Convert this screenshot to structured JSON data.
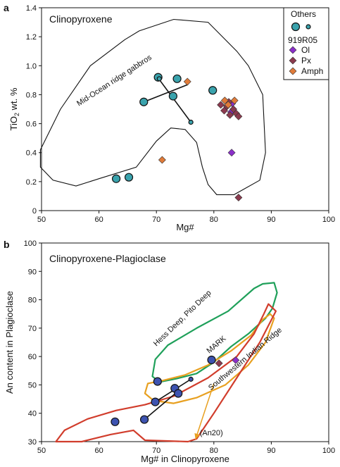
{
  "chart_data": [
    {
      "panel": "a",
      "type": "scatter",
      "title": "Clinopyroxene",
      "xlabel": "Mg#",
      "ylabel_main": "TiO",
      "ylabel_sub": "2",
      "ylabel_rest": " wt. %",
      "xlim": [
        50,
        100
      ],
      "ylim": [
        0,
        1.4
      ],
      "xticks": [
        "50",
        "60",
        "70",
        "80",
        "90",
        "100"
      ],
      "yticks": [
        "0",
        "0.2",
        "0.4",
        "0.6",
        "0.8",
        "1.0",
        "1.2",
        "1.4"
      ],
      "legend": {
        "placement": "top-right",
        "title": "Others",
        "sample": "919R05",
        "entries": [
          {
            "label": "Ol",
            "color": "#8b2fc9",
            "marker": "diamond"
          },
          {
            "label": "Px",
            "color": "#8b3a4e",
            "marker": "diamond"
          },
          {
            "label": "Amph",
            "color": "#e07b39",
            "marker": "diamond"
          }
        ]
      },
      "field": {
        "label": "Mid-Ocean ridge gabbros",
        "polygon": [
          [
            64.5,
            1.18
          ],
          [
            58.5,
            1.0
          ],
          [
            53.3,
            0.7
          ],
          [
            49.8,
            0.42
          ],
          [
            49.8,
            0.3
          ],
          [
            52.0,
            0.21
          ],
          [
            56.0,
            0.17
          ],
          [
            60.0,
            0.22
          ],
          [
            66.5,
            0.3
          ],
          [
            70.0,
            0.48
          ],
          [
            72.5,
            0.57
          ],
          [
            75.0,
            0.56
          ],
          [
            77.0,
            0.47
          ],
          [
            78.0,
            0.3
          ],
          [
            79.0,
            0.18
          ],
          [
            80.5,
            0.11
          ],
          [
            83.5,
            0.11
          ],
          [
            88.0,
            0.21
          ],
          [
            89.0,
            0.4
          ],
          [
            88.5,
            0.8
          ],
          [
            86.0,
            1.0
          ],
          [
            84.0,
            1.1
          ],
          [
            79.0,
            1.3
          ],
          [
            73.0,
            1.32
          ],
          [
            67.0,
            1.24
          ],
          [
            64.5,
            1.18
          ]
        ]
      },
      "others_large": {
        "color": "#3aa3ad",
        "points": [
          [
            63.0,
            0.22
          ],
          [
            65.2,
            0.23
          ],
          [
            67.8,
            0.75
          ],
          [
            70.3,
            0.92
          ],
          [
            73.6,
            0.91
          ],
          [
            72.9,
            0.79
          ],
          [
            79.8,
            0.83
          ]
        ]
      },
      "others_small": {
        "color": "#3aa3ad",
        "points": [
          [
            70.5,
            0.91
          ],
          [
            76.0,
            0.61
          ]
        ]
      },
      "tie_lines": [
        [
          [
            67.8,
            0.75
          ],
          [
            75.5,
            0.87
          ]
        ],
        [
          [
            70.4,
            0.91
          ],
          [
            76.0,
            0.61
          ]
        ]
      ],
      "series": [
        {
          "name": "Ol",
          "color": "#8b2fc9",
          "points": [
            [
              83.2,
              0.74
            ],
            [
              83.0,
              0.68
            ],
            [
              83.1,
              0.4
            ]
          ]
        },
        {
          "name": "Px",
          "color": "#8b3a4e",
          "points": [
            [
              81.2,
              0.73
            ],
            [
              81.8,
              0.69
            ],
            [
              82.3,
              0.72
            ],
            [
              82.8,
              0.66
            ],
            [
              83.4,
              0.7
            ],
            [
              83.9,
              0.67
            ],
            [
              84.3,
              0.65
            ],
            [
              82.6,
              0.75
            ],
            [
              84.3,
              0.09
            ]
          ]
        },
        {
          "name": "Amph",
          "color": "#e07b39",
          "points": [
            [
              75.4,
              0.89
            ],
            [
              81.9,
              0.76
            ],
            [
              82.5,
              0.73
            ],
            [
              83.6,
              0.76
            ],
            [
              71.0,
              0.35
            ]
          ]
        }
      ]
    },
    {
      "panel": "b",
      "type": "scatter",
      "title": "Clinopyroxene-Plagioclase",
      "xlabel": "Mg# in Clinopyroxene",
      "ylabel": "An content in Plagioclase",
      "xlim": [
        50,
        100
      ],
      "ylim": [
        30,
        100
      ],
      "xticks": [
        "50",
        "60",
        "70",
        "80",
        "90",
        "100"
      ],
      "yticks": [
        "30",
        "40",
        "50",
        "60",
        "70",
        "80",
        "90",
        "100"
      ],
      "fields": [
        {
          "label": "Hess Deep, Pito Deep",
          "color": "#1fa05a",
          "polygon": [
            [
              69.3,
              53.0
            ],
            [
              69.8,
              59.0
            ],
            [
              72.0,
              64.0
            ],
            [
              77.0,
              70.0
            ],
            [
              82.5,
              76.0
            ],
            [
              87.0,
              84.0
            ],
            [
              88.5,
              85.6
            ],
            [
              90.5,
              86.0
            ],
            [
              91.0,
              82.5
            ],
            [
              90.2,
              77.0
            ],
            [
              89.0,
              73.5
            ],
            [
              86.0,
              68.0
            ],
            [
              83.0,
              63.5
            ],
            [
              80.0,
              58.0
            ],
            [
              77.0,
              54.0
            ],
            [
              73.5,
              52.2
            ],
            [
              70.5,
              51.0
            ],
            [
              69.3,
              53.0
            ]
          ]
        },
        {
          "label": "MARK",
          "color": "#e8a020",
          "polygon": [
            [
              68.5,
              50.5
            ],
            [
              71.0,
              51.5
            ],
            [
              75.0,
              53.5
            ],
            [
              79.0,
              57.0
            ],
            [
              83.0,
              62.0
            ],
            [
              86.5,
              67.5
            ],
            [
              88.5,
              73.0
            ],
            [
              89.8,
              75.0
            ],
            [
              90.5,
              73.5
            ],
            [
              89.0,
              65.0
            ],
            [
              86.0,
              57.0
            ],
            [
              82.0,
              50.0
            ],
            [
              77.0,
              45.5
            ],
            [
              73.0,
              43.5
            ],
            [
              69.5,
              44.5
            ],
            [
              68.0,
              47.0
            ],
            [
              68.5,
              50.5
            ]
          ]
        },
        {
          "label": "Southwestern Indian Ridge",
          "color": "#d13d2c",
          "polygon": [
            [
              52.5,
              30.0
            ],
            [
              54.0,
              34.0
            ],
            [
              58.0,
              38.0
            ],
            [
              63.0,
              41.0
            ],
            [
              68.0,
              43.0
            ],
            [
              73.0,
              46.0
            ],
            [
              79.0,
              52.5
            ],
            [
              84.0,
              60.0
            ],
            [
              87.0,
              68.0
            ],
            [
              88.7,
              75.0
            ],
            [
              89.5,
              78.5
            ],
            [
              90.8,
              76.0
            ],
            [
              88.0,
              65.0
            ],
            [
              84.0,
              52.5
            ],
            [
              80.0,
              40.0
            ],
            [
              77.0,
              31.0
            ],
            [
              75.5,
              30.0
            ],
            [
              68.0,
              30.5
            ],
            [
              66.0,
              34.0
            ],
            [
              62.0,
              32.5
            ],
            [
              57.0,
              30.0
            ],
            [
              52.5,
              30.0
            ]
          ]
        }
      ],
      "arrow": {
        "from": [
          80.0,
          50.5
        ],
        "to": [
          76.8,
          30.8
        ],
        "color": "#e8a020",
        "label": "(An20)"
      },
      "others_large": {
        "color": "#3d53b0",
        "points": [
          [
            62.8,
            37.0
          ],
          [
            67.9,
            37.8
          ],
          [
            70.2,
            51.2
          ],
          [
            69.8,
            44.0
          ],
          [
            73.2,
            48.8
          ],
          [
            73.8,
            47.0
          ],
          [
            79.6,
            58.8
          ]
        ]
      },
      "others_small": {
        "color": "#3d53b0",
        "points": [
          [
            76.0,
            52.0
          ]
        ]
      },
      "tie_lines": [
        [
          [
            67.9,
            37.8
          ],
          [
            73.6,
            47.5
          ]
        ],
        [
          [
            69.8,
            44.0
          ],
          [
            76.0,
            52.0
          ]
        ]
      ],
      "series": [
        {
          "name": "Px",
          "color": "#8b3a4e",
          "points": [
            [
              80.9,
              57.6
            ]
          ]
        },
        {
          "name": "Ol",
          "color": "#8b2fc9",
          "points": [
            [
              83.8,
              58.7
            ]
          ]
        }
      ]
    }
  ]
}
